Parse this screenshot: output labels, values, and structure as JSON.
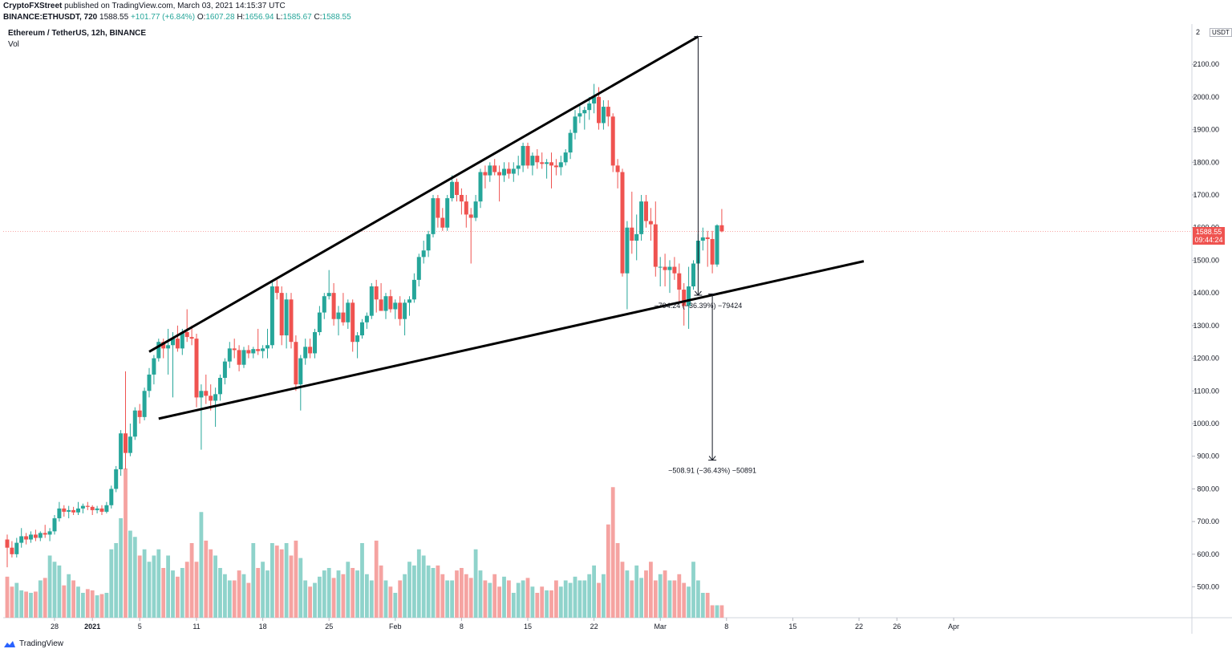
{
  "header": {
    "author": "CryptoFXStreet",
    "published": "published on TradingView.com, March 03, 2021 14:15:37 UTC",
    "symbol_line": "BINANCE:ETHUSDT, 720",
    "last": "1588.55",
    "change": "+101.77 (+6.84%)",
    "o_label": "O:",
    "o": "1607.28",
    "h_label": "H:",
    "h": "1656.94",
    "l_label": "L:",
    "l": "1585.67",
    "c_label": "C:",
    "c": "1588.55"
  },
  "legend": {
    "title": "Ethereum / TetherUS, 12h, BINANCE",
    "vol": "Vol"
  },
  "price_tag": {
    "price": "1588.55",
    "countdown": "09:44:24"
  },
  "currency": {
    "prefix": "2",
    "code": "USDT"
  },
  "footer": {
    "brand": "TradingView"
  },
  "colors": {
    "up": "#26a69a",
    "down": "#ef5350",
    "vol_up": "#8fd3cb",
    "vol_down": "#f5a3a1",
    "trendline": "#000000"
  },
  "chart_data": {
    "type": "candlestick",
    "symbol": "ETHUSDT",
    "timeframe": "12h",
    "exchange": "BINANCE",
    "y_ticks": [
      2100,
      2000,
      1900,
      1800,
      1700,
      1600,
      1500,
      1400,
      1300,
      1200,
      1100,
      1000,
      900,
      800,
      700,
      600,
      500
    ],
    "x_ticks": [
      {
        "label": "28",
        "i": 10
      },
      {
        "label": "2021",
        "i": 18
      },
      {
        "label": "5",
        "i": 28
      },
      {
        "label": "11",
        "i": 40
      },
      {
        "label": "18",
        "i": 54
      },
      {
        "label": "25",
        "i": 68
      },
      {
        "label": "Feb",
        "i": 82
      },
      {
        "label": "8",
        "i": 96
      },
      {
        "label": "15",
        "i": 110
      },
      {
        "label": "22",
        "i": 124
      },
      {
        "label": "Mar",
        "i": 138
      },
      {
        "label": "8",
        "i": 152
      },
      {
        "label": "15",
        "i": 166
      },
      {
        "label": "22",
        "i": 180
      },
      {
        "label": "26",
        "i": 188
      },
      {
        "label": "Apr",
        "i": 200
      }
    ],
    "candles": [
      {
        "o": 645,
        "h": 660,
        "l": 560,
        "c": 620
      },
      {
        "o": 620,
        "h": 640,
        "l": 590,
        "c": 600
      },
      {
        "o": 600,
        "h": 650,
        "l": 590,
        "c": 635
      },
      {
        "o": 635,
        "h": 680,
        "l": 620,
        "c": 655
      },
      {
        "o": 655,
        "h": 665,
        "l": 630,
        "c": 645
      },
      {
        "o": 645,
        "h": 670,
        "l": 635,
        "c": 660
      },
      {
        "o": 660,
        "h": 675,
        "l": 640,
        "c": 650
      },
      {
        "o": 650,
        "h": 670,
        "l": 640,
        "c": 665
      },
      {
        "o": 665,
        "h": 690,
        "l": 650,
        "c": 660
      },
      {
        "o": 660,
        "h": 680,
        "l": 640,
        "c": 670
      },
      {
        "o": 670,
        "h": 720,
        "l": 660,
        "c": 710
      },
      {
        "o": 710,
        "h": 760,
        "l": 700,
        "c": 740
      },
      {
        "o": 740,
        "h": 750,
        "l": 715,
        "c": 730
      },
      {
        "o": 730,
        "h": 748,
        "l": 710,
        "c": 735
      },
      {
        "o": 735,
        "h": 745,
        "l": 720,
        "c": 728
      },
      {
        "o": 728,
        "h": 760,
        "l": 720,
        "c": 740
      },
      {
        "o": 740,
        "h": 755,
        "l": 725,
        "c": 748
      },
      {
        "o": 748,
        "h": 760,
        "l": 735,
        "c": 745
      },
      {
        "o": 745,
        "h": 750,
        "l": 720,
        "c": 735
      },
      {
        "o": 735,
        "h": 748,
        "l": 725,
        "c": 740
      },
      {
        "o": 740,
        "h": 750,
        "l": 720,
        "c": 730
      },
      {
        "o": 730,
        "h": 760,
        "l": 725,
        "c": 750
      },
      {
        "o": 750,
        "h": 810,
        "l": 740,
        "c": 800
      },
      {
        "o": 800,
        "h": 870,
        "l": 790,
        "c": 860
      },
      {
        "o": 860,
        "h": 980,
        "l": 840,
        "c": 970
      },
      {
        "o": 970,
        "h": 1160,
        "l": 860,
        "c": 910
      },
      {
        "o": 910,
        "h": 1000,
        "l": 900,
        "c": 960
      },
      {
        "o": 960,
        "h": 1050,
        "l": 950,
        "c": 1040
      },
      {
        "o": 1040,
        "h": 1060,
        "l": 1000,
        "c": 1020
      },
      {
        "o": 1020,
        "h": 1110,
        "l": 1010,
        "c": 1100
      },
      {
        "o": 1100,
        "h": 1170,
        "l": 1080,
        "c": 1150
      },
      {
        "o": 1150,
        "h": 1210,
        "l": 1120,
        "c": 1200
      },
      {
        "o": 1200,
        "h": 1260,
        "l": 1190,
        "c": 1250
      },
      {
        "o": 1250,
        "h": 1260,
        "l": 1200,
        "c": 1230
      },
      {
        "o": 1230,
        "h": 1290,
        "l": 1150,
        "c": 1240
      },
      {
        "o": 1240,
        "h": 1280,
        "l": 1080,
        "c": 1260
      },
      {
        "o": 1260,
        "h": 1300,
        "l": 1220,
        "c": 1230
      },
      {
        "o": 1230,
        "h": 1290,
        "l": 1210,
        "c": 1280
      },
      {
        "o": 1280,
        "h": 1350,
        "l": 1250,
        "c": 1265
      },
      {
        "o": 1265,
        "h": 1300,
        "l": 1240,
        "c": 1260
      },
      {
        "o": 1260,
        "h": 1275,
        "l": 1050,
        "c": 1080
      },
      {
        "o": 1080,
        "h": 1120,
        "l": 920,
        "c": 1100
      },
      {
        "o": 1100,
        "h": 1150,
        "l": 1060,
        "c": 1085
      },
      {
        "o": 1085,
        "h": 1120,
        "l": 1040,
        "c": 1070
      },
      {
        "o": 1070,
        "h": 1110,
        "l": 990,
        "c": 1090
      },
      {
        "o": 1090,
        "h": 1150,
        "l": 1070,
        "c": 1140
      },
      {
        "o": 1140,
        "h": 1200,
        "l": 1120,
        "c": 1190
      },
      {
        "o": 1190,
        "h": 1250,
        "l": 1170,
        "c": 1230
      },
      {
        "o": 1230,
        "h": 1260,
        "l": 1200,
        "c": 1225
      },
      {
        "o": 1225,
        "h": 1240,
        "l": 1160,
        "c": 1180
      },
      {
        "o": 1180,
        "h": 1235,
        "l": 1170,
        "c": 1225
      },
      {
        "o": 1225,
        "h": 1240,
        "l": 1200,
        "c": 1215
      },
      {
        "o": 1215,
        "h": 1235,
        "l": 1200,
        "c": 1228
      },
      {
        "o": 1228,
        "h": 1290,
        "l": 1210,
        "c": 1222
      },
      {
        "o": 1222,
        "h": 1240,
        "l": 1200,
        "c": 1230
      },
      {
        "o": 1230,
        "h": 1290,
        "l": 1200,
        "c": 1240
      },
      {
        "o": 1240,
        "h": 1440,
        "l": 1230,
        "c": 1420
      },
      {
        "o": 1420,
        "h": 1440,
        "l": 1380,
        "c": 1400
      },
      {
        "o": 1400,
        "h": 1420,
        "l": 1240,
        "c": 1270
      },
      {
        "o": 1270,
        "h": 1400,
        "l": 1230,
        "c": 1380
      },
      {
        "o": 1380,
        "h": 1400,
        "l": 1230,
        "c": 1250
      },
      {
        "o": 1250,
        "h": 1270,
        "l": 1100,
        "c": 1120
      },
      {
        "o": 1120,
        "h": 1210,
        "l": 1040,
        "c": 1200
      },
      {
        "o": 1200,
        "h": 1260,
        "l": 1180,
        "c": 1235
      },
      {
        "o": 1235,
        "h": 1260,
        "l": 1200,
        "c": 1215
      },
      {
        "o": 1215,
        "h": 1290,
        "l": 1200,
        "c": 1280
      },
      {
        "o": 1280,
        "h": 1360,
        "l": 1270,
        "c": 1340
      },
      {
        "o": 1340,
        "h": 1400,
        "l": 1320,
        "c": 1390
      },
      {
        "o": 1390,
        "h": 1470,
        "l": 1380,
        "c": 1400
      },
      {
        "o": 1400,
        "h": 1430,
        "l": 1300,
        "c": 1320
      },
      {
        "o": 1320,
        "h": 1360,
        "l": 1270,
        "c": 1340
      },
      {
        "o": 1340,
        "h": 1400,
        "l": 1300,
        "c": 1310
      },
      {
        "o": 1310,
        "h": 1380,
        "l": 1290,
        "c": 1370
      },
      {
        "o": 1370,
        "h": 1380,
        "l": 1220,
        "c": 1250
      },
      {
        "o": 1250,
        "h": 1280,
        "l": 1200,
        "c": 1270
      },
      {
        "o": 1270,
        "h": 1320,
        "l": 1260,
        "c": 1310
      },
      {
        "o": 1310,
        "h": 1340,
        "l": 1290,
        "c": 1330
      },
      {
        "o": 1330,
        "h": 1430,
        "l": 1320,
        "c": 1420
      },
      {
        "o": 1420,
        "h": 1440,
        "l": 1340,
        "c": 1380
      },
      {
        "o": 1380,
        "h": 1430,
        "l": 1350,
        "c": 1345
      },
      {
        "o": 1345,
        "h": 1400,
        "l": 1320,
        "c": 1390
      },
      {
        "o": 1390,
        "h": 1410,
        "l": 1340,
        "c": 1350
      },
      {
        "o": 1350,
        "h": 1380,
        "l": 1320,
        "c": 1370
      },
      {
        "o": 1370,
        "h": 1390,
        "l": 1300,
        "c": 1320
      },
      {
        "o": 1320,
        "h": 1380,
        "l": 1270,
        "c": 1370
      },
      {
        "o": 1370,
        "h": 1390,
        "l": 1330,
        "c": 1380
      },
      {
        "o": 1380,
        "h": 1460,
        "l": 1370,
        "c": 1440
      },
      {
        "o": 1440,
        "h": 1520,
        "l": 1420,
        "c": 1510
      },
      {
        "o": 1510,
        "h": 1560,
        "l": 1490,
        "c": 1530
      },
      {
        "o": 1530,
        "h": 1590,
        "l": 1510,
        "c": 1580
      },
      {
        "o": 1580,
        "h": 1700,
        "l": 1570,
        "c": 1690
      },
      {
        "o": 1690,
        "h": 1700,
        "l": 1600,
        "c": 1630
      },
      {
        "o": 1630,
        "h": 1660,
        "l": 1590,
        "c": 1600
      },
      {
        "o": 1600,
        "h": 1700,
        "l": 1590,
        "c": 1690
      },
      {
        "o": 1690,
        "h": 1760,
        "l": 1680,
        "c": 1740
      },
      {
        "o": 1740,
        "h": 1750,
        "l": 1680,
        "c": 1700
      },
      {
        "o": 1700,
        "h": 1720,
        "l": 1640,
        "c": 1680
      },
      {
        "o": 1680,
        "h": 1700,
        "l": 1600,
        "c": 1640
      },
      {
        "o": 1640,
        "h": 1660,
        "l": 1490,
        "c": 1630
      },
      {
        "o": 1630,
        "h": 1700,
        "l": 1620,
        "c": 1680
      },
      {
        "o": 1680,
        "h": 1780,
        "l": 1660,
        "c": 1770
      },
      {
        "o": 1770,
        "h": 1790,
        "l": 1720,
        "c": 1760
      },
      {
        "o": 1760,
        "h": 1800,
        "l": 1740,
        "c": 1790
      },
      {
        "o": 1790,
        "h": 1810,
        "l": 1760,
        "c": 1770
      },
      {
        "o": 1770,
        "h": 1790,
        "l": 1680,
        "c": 1760
      },
      {
        "o": 1760,
        "h": 1800,
        "l": 1740,
        "c": 1780
      },
      {
        "o": 1780,
        "h": 1800,
        "l": 1750,
        "c": 1765
      },
      {
        "o": 1765,
        "h": 1800,
        "l": 1740,
        "c": 1780
      },
      {
        "o": 1780,
        "h": 1820,
        "l": 1760,
        "c": 1790
      },
      {
        "o": 1790,
        "h": 1860,
        "l": 1770,
        "c": 1850
      },
      {
        "o": 1850,
        "h": 1860,
        "l": 1780,
        "c": 1790
      },
      {
        "o": 1790,
        "h": 1830,
        "l": 1760,
        "c": 1820
      },
      {
        "o": 1820,
        "h": 1840,
        "l": 1780,
        "c": 1800
      },
      {
        "o": 1800,
        "h": 1830,
        "l": 1780,
        "c": 1795
      },
      {
        "o": 1795,
        "h": 1810,
        "l": 1750,
        "c": 1800
      },
      {
        "o": 1800,
        "h": 1830,
        "l": 1720,
        "c": 1790
      },
      {
        "o": 1790,
        "h": 1810,
        "l": 1760,
        "c": 1785
      },
      {
        "o": 1785,
        "h": 1820,
        "l": 1760,
        "c": 1800
      },
      {
        "o": 1800,
        "h": 1840,
        "l": 1790,
        "c": 1830
      },
      {
        "o": 1830,
        "h": 1900,
        "l": 1810,
        "c": 1890
      },
      {
        "o": 1890,
        "h": 1960,
        "l": 1870,
        "c": 1940
      },
      {
        "o": 1940,
        "h": 1980,
        "l": 1920,
        "c": 1950
      },
      {
        "o": 1950,
        "h": 1970,
        "l": 1900,
        "c": 1960
      },
      {
        "o": 1960,
        "h": 2000,
        "l": 1930,
        "c": 1980
      },
      {
        "o": 1980,
        "h": 2040,
        "l": 1950,
        "c": 2000
      },
      {
        "o": 2000,
        "h": 2030,
        "l": 1900,
        "c": 1920
      },
      {
        "o": 1920,
        "h": 1990,
        "l": 1900,
        "c": 1970
      },
      {
        "o": 1970,
        "h": 1990,
        "l": 1910,
        "c": 1940
      },
      {
        "o": 1940,
        "h": 1950,
        "l": 1770,
        "c": 1790
      },
      {
        "o": 1790,
        "h": 1810,
        "l": 1720,
        "c": 1770
      },
      {
        "o": 1770,
        "h": 1780,
        "l": 1450,
        "c": 1460
      },
      {
        "o": 1460,
        "h": 1620,
        "l": 1350,
        "c": 1600
      },
      {
        "o": 1600,
        "h": 1710,
        "l": 1520,
        "c": 1560
      },
      {
        "o": 1560,
        "h": 1640,
        "l": 1500,
        "c": 1580
      },
      {
        "o": 1580,
        "h": 1700,
        "l": 1560,
        "c": 1680
      },
      {
        "o": 1680,
        "h": 1700,
        "l": 1600,
        "c": 1620
      },
      {
        "o": 1620,
        "h": 1660,
        "l": 1560,
        "c": 1610
      },
      {
        "o": 1610,
        "h": 1680,
        "l": 1450,
        "c": 1480
      },
      {
        "o": 1480,
        "h": 1510,
        "l": 1420,
        "c": 1480
      },
      {
        "o": 1480,
        "h": 1520,
        "l": 1420,
        "c": 1470
      },
      {
        "o": 1470,
        "h": 1500,
        "l": 1400,
        "c": 1480
      },
      {
        "o": 1480,
        "h": 1510,
        "l": 1440,
        "c": 1460
      },
      {
        "o": 1460,
        "h": 1490,
        "l": 1370,
        "c": 1410
      },
      {
        "o": 1410,
        "h": 1430,
        "l": 1300,
        "c": 1360
      },
      {
        "o": 1360,
        "h": 1480,
        "l": 1290,
        "c": 1420
      },
      {
        "o": 1420,
        "h": 1500,
        "l": 1410,
        "c": 1490
      },
      {
        "o": 1490,
        "h": 1580,
        "l": 1470,
        "c": 1560
      },
      {
        "o": 1560,
        "h": 1600,
        "l": 1530,
        "c": 1570
      },
      {
        "o": 1570,
        "h": 1590,
        "l": 1480,
        "c": 1565
      },
      {
        "o": 1565,
        "h": 1590,
        "l": 1460,
        "c": 1487
      },
      {
        "o": 1487,
        "h": 1610,
        "l": 1480,
        "c": 1607
      },
      {
        "o": 1607.28,
        "h": 1656.94,
        "l": 1585.67,
        "c": 1588.55
      }
    ],
    "volume_rel": [
      0.33,
      0.25,
      0.28,
      0.22,
      0.21,
      0.2,
      0.21,
      0.3,
      0.32,
      0.5,
      0.45,
      0.42,
      0.26,
      0.35,
      0.3,
      0.25,
      0.2,
      0.23,
      0.22,
      0.18,
      0.19,
      0.2,
      0.55,
      0.6,
      0.8,
      1.2,
      0.7,
      0.65,
      0.5,
      0.55,
      0.45,
      0.5,
      0.55,
      0.4,
      0.5,
      0.38,
      0.33,
      0.4,
      0.45,
      0.6,
      0.45,
      0.85,
      0.62,
      0.55,
      0.5,
      0.4,
      0.35,
      0.3,
      0.3,
      0.38,
      0.35,
      0.28,
      0.6,
      0.4,
      0.45,
      0.38,
      0.6,
      0.58,
      0.55,
      0.6,
      0.5,
      0.62,
      0.48,
      0.3,
      0.25,
      0.28,
      0.33,
      0.38,
      0.4,
      0.32,
      0.38,
      0.35,
      0.45,
      0.4,
      0.38,
      0.6,
      0.35,
      0.3,
      0.62,
      0.42,
      0.3,
      0.25,
      0.2,
      0.3,
      0.35,
      0.45,
      0.42,
      0.55,
      0.5,
      0.42,
      0.4,
      0.42,
      0.35,
      0.3,
      0.3,
      0.38,
      0.4,
      0.35,
      0.32,
      0.55,
      0.38,
      0.3,
      0.28,
      0.35,
      0.25,
      0.33,
      0.3,
      0.2,
      0.28,
      0.3,
      0.32,
      0.25,
      0.2,
      0.25,
      0.22,
      0.22,
      0.3,
      0.25,
      0.3,
      0.28,
      0.33,
      0.3,
      0.3,
      0.35,
      0.42,
      0.28,
      0.35,
      0.75,
      1.05,
      0.6,
      0.45,
      0.38,
      0.3,
      0.42,
      0.32,
      0.38,
      0.45,
      0.3,
      0.35,
      0.38,
      0.3,
      0.3,
      0.35,
      0.28,
      0.25,
      0.45,
      0.3,
      0.2,
      0.2,
      0.1,
      0.1,
      0.1
    ],
    "trendlines": [
      {
        "name": "upper",
        "from": {
          "i": 30,
          "p": 1220
        },
        "to": {
          "i": 146,
          "p": 2185
        }
      },
      {
        "name": "lower",
        "from": {
          "i": 32,
          "p": 1015
        },
        "to": {
          "i": 181,
          "p": 1497
        }
      }
    ],
    "measures": [
      {
        "i": 146,
        "from_p": 2185,
        "to_p": 1393,
        "label": "−794.24 (−36.39%) −79424"
      },
      {
        "i": 149,
        "from_p": 1397,
        "to_p": 888,
        "label": "−508.91 (−36.43%) −50891"
      }
    ],
    "last_price": 1588.55
  }
}
